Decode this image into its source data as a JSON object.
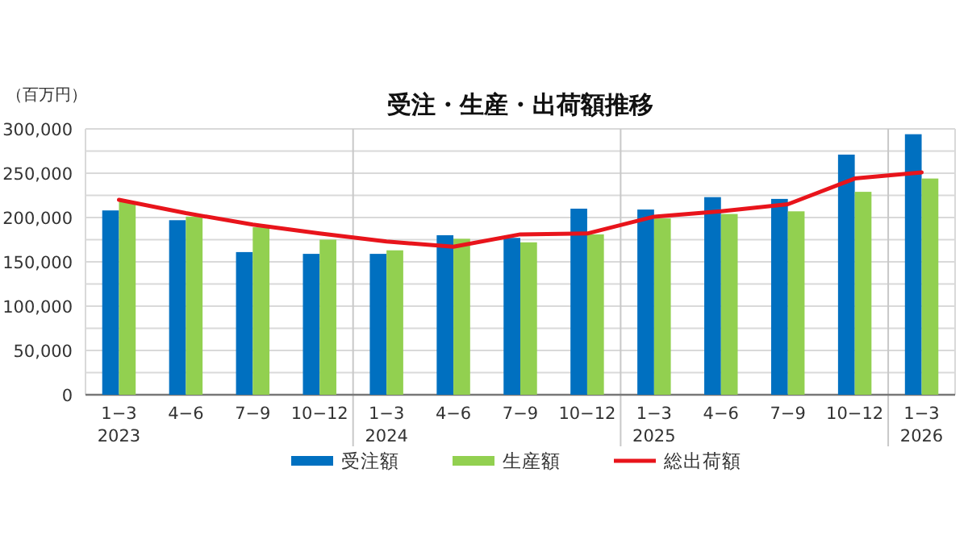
{
  "chart_data": {
    "type": "bar",
    "title": "受注・生産・出荷額推移",
    "ylabel": "（百万円）",
    "categories": [
      "1−3 2023",
      "4−6",
      "7−9",
      "10−12",
      "1−3 2024",
      "4−6",
      "7−9",
      "10−12",
      "1−3 2025",
      "4−6",
      "7−9",
      "10−12",
      "1−3 2026"
    ],
    "series": [
      {
        "name": "受注額",
        "color": "#0070c0",
        "values": [
          208000,
          197000,
          161000,
          159000,
          159000,
          180000,
          177000,
          210000,
          209000,
          223000,
          221000,
          271000,
          294000
        ]
      },
      {
        "name": "生産額",
        "color": "#92d050",
        "values": [
          218000,
          201000,
          189000,
          175000,
          163000,
          176000,
          172000,
          181000,
          199000,
          204000,
          207000,
          229000,
          244000
        ]
      },
      {
        "name": "総出荷額",
        "type": "line",
        "color": "#e8141b",
        "values": [
          220000,
          205000,
          192000,
          182000,
          173000,
          167000,
          181000,
          182000,
          201000,
          207000,
          215000,
          244000,
          251000
        ]
      }
    ],
    "ylim": [
      0,
      300000
    ],
    "yticks": [
      {
        "value": 0,
        "label": "0"
      },
      {
        "value": 25000,
        "label": null
      },
      {
        "value": 50000,
        "label": "50,000"
      },
      {
        "value": 75000,
        "label": null
      },
      {
        "value": 100000,
        "label": "100,000"
      },
      {
        "value": 125000,
        "label": null
      },
      {
        "value": 150000,
        "label": "150,000"
      },
      {
        "value": 175000,
        "label": null
      },
      {
        "value": 200000,
        "label": "200,000"
      },
      {
        "value": 225000,
        "label": null
      },
      {
        "value": 250000,
        "label": "250,000"
      },
      {
        "value": 275000,
        "label": null
      },
      {
        "value": 300000,
        "label": "300,000"
      }
    ],
    "grid": "y",
    "legend": "bottom",
    "marker": "none",
    "line_style": "solid"
  }
}
